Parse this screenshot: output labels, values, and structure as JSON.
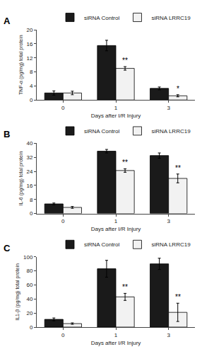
{
  "chart_data": [
    {
      "type": "bar",
      "title": "A",
      "xlabel": "Days after I/R Injury",
      "ylabel": "TNF-α (pg/mg) total protein",
      "categories": [
        "0",
        "1",
        "3"
      ],
      "series": [
        {
          "name": "siRNA Control",
          "color": "#1a1a1a",
          "values": [
            2.0,
            15.5,
            3.3
          ],
          "errors": [
            0.6,
            1.5,
            0.4
          ]
        },
        {
          "name": "siRNA LRRC19",
          "color": "#f2f2f2",
          "values": [
            2.0,
            9.0,
            1.2
          ],
          "errors": [
            0.5,
            0.5,
            0.3
          ]
        }
      ],
      "annotations": [
        {
          "category": "1",
          "series": "siRNA LRRC19",
          "text": "**"
        },
        {
          "category": "3",
          "series": "siRNA LRRC19",
          "text": "*"
        }
      ],
      "ylim": [
        0,
        20
      ],
      "yticks": [
        0,
        4,
        8,
        12,
        16,
        20
      ],
      "grid": false,
      "legend": "top"
    },
    {
      "type": "bar",
      "title": "B",
      "xlabel": "Days after I/R Injury",
      "ylabel": "IL-6 (pg/mg) total protein",
      "categories": [
        "0",
        "1",
        "3"
      ],
      "series": [
        {
          "name": "siRNA Control",
          "color": "#1a1a1a",
          "values": [
            5.5,
            35.5,
            33.0
          ],
          "errors": [
            0.5,
            1.0,
            1.5
          ]
        },
        {
          "name": "siRNA LRRC19",
          "color": "#f2f2f2",
          "values": [
            3.5,
            24.5,
            20.0
          ],
          "errors": [
            0.5,
            1.0,
            2.5
          ]
        }
      ],
      "annotations": [
        {
          "category": "1",
          "series": "siRNA LRRC19",
          "text": "**"
        },
        {
          "category": "3",
          "series": "siRNA LRRC19",
          "text": "**"
        }
      ],
      "ylim": [
        0,
        40
      ],
      "yticks": [
        0,
        8,
        16,
        24,
        32,
        40
      ],
      "grid": false,
      "legend": "top"
    },
    {
      "type": "bar",
      "title": "C",
      "xlabel": "Days after I/R Injury",
      "ylabel": "IL1-β (pg/mg) total protein",
      "categories": [
        "0",
        "1",
        "3"
      ],
      "series": [
        {
          "name": "siRNA Control",
          "color": "#1a1a1a",
          "values": [
            11.0,
            83.0,
            90.0
          ],
          "errors": [
            2.0,
            12.0,
            8.0
          ]
        },
        {
          "name": "siRNA LRRC19",
          "color": "#f2f2f2",
          "values": [
            5.0,
            43.0,
            21.0
          ],
          "errors": [
            1.0,
            5.0,
            13.0
          ]
        }
      ],
      "annotations": [
        {
          "category": "1",
          "series": "siRNA LRRC19",
          "text": "**"
        },
        {
          "category": "3",
          "series": "siRNA LRRC19",
          "text": "**"
        }
      ],
      "ylim": [
        0,
        100
      ],
      "yticks": [
        0,
        20,
        40,
        60,
        80,
        100
      ],
      "grid": false,
      "legend": "top"
    }
  ]
}
